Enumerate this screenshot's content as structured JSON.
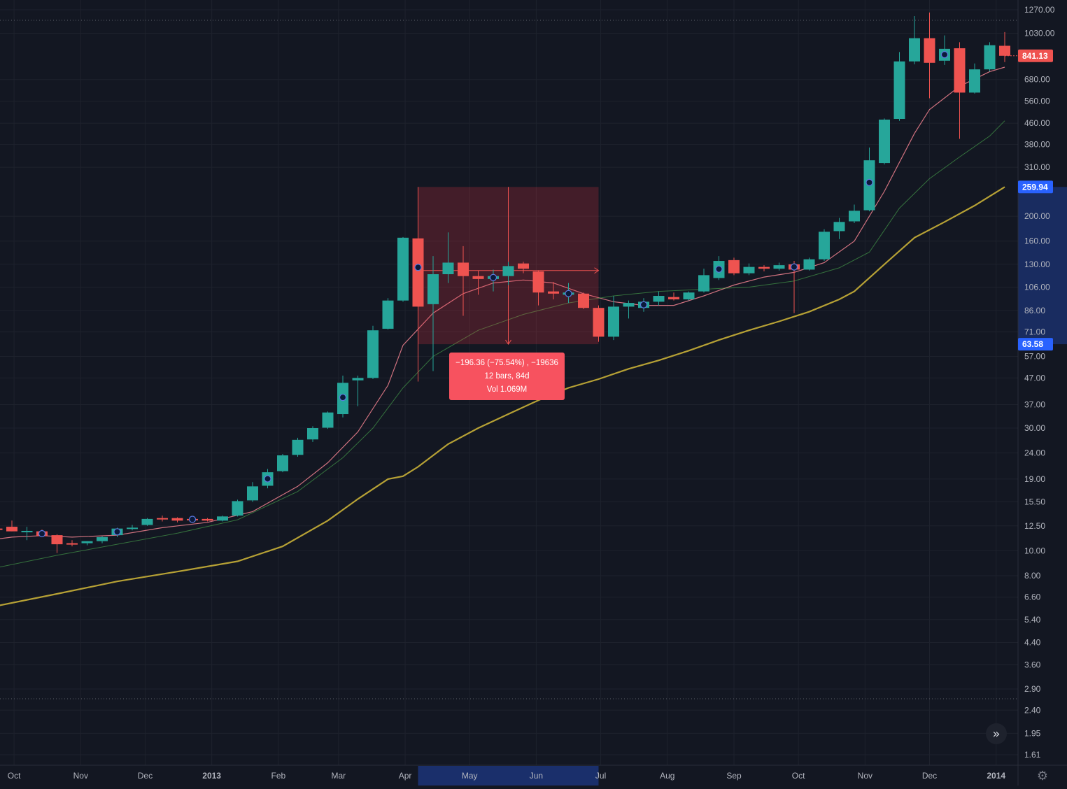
{
  "colors": {
    "background": "#131722",
    "grid": "#1e222d",
    "up": "#26a69a",
    "down": "#ef5350",
    "axis_text": "#b2b5be",
    "ema_fast": "#e57c8a",
    "ema_mid": "#4caf50",
    "sma_slow": "#c9b037",
    "measure_fill": "#f23645",
    "measure_label_bg": "#f7525f",
    "current_price_bg": "#ef5350",
    "range_label_bg": "#2962ff",
    "range_highlight": "#1e3a8a"
  },
  "chart_data": {
    "type": "candlestick",
    "interval": "weekly",
    "scale": "log",
    "ylim": [
      1.5,
      1300
    ],
    "grid": true,
    "y_ticks": [
      "1270.00",
      "1030.00",
      "841.13",
      "680.00",
      "560.00",
      "460.00",
      "380.00",
      "310.00",
      "259.94",
      "200.00",
      "160.00",
      "130.00",
      "106.00",
      "86.00",
      "71.00",
      "63.58",
      "57.00",
      "47.00",
      "37.00",
      "30.00",
      "24.00",
      "19.00",
      "15.50",
      "12.50",
      "10.00",
      "8.00",
      "6.60",
      "5.40",
      "4.40",
      "3.60",
      "2.90",
      "2.40",
      "1.95",
      "1.61"
    ],
    "x_labels": [
      "Oct",
      "Nov",
      "Dec",
      "2013",
      "Feb",
      "Mar",
      "Apr",
      "May",
      "Jun",
      "Jul",
      "Aug",
      "Sep",
      "Oct",
      "Nov",
      "Dec",
      "2014"
    ],
    "candles": [
      {
        "date": "2012-09-23",
        "o": 12.2,
        "h": 13.0,
        "l": 11.5,
        "c": 12.1
      },
      {
        "date": "2012-09-30",
        "o": 12.4,
        "h": 13.1,
        "l": 11.9,
        "c": 11.9
      },
      {
        "date": "2012-10-07",
        "o": 11.9,
        "h": 12.4,
        "l": 11.0,
        "c": 11.95
      },
      {
        "date": "2012-10-14",
        "o": 11.9,
        "h": 12.1,
        "l": 11.4,
        "c": 11.4
      },
      {
        "date": "2012-10-21",
        "o": 11.5,
        "h": 11.6,
        "l": 9.8,
        "c": 10.6
      },
      {
        "date": "2012-10-28",
        "o": 10.7,
        "h": 11.0,
        "l": 10.4,
        "c": 10.65
      },
      {
        "date": "2012-11-04",
        "o": 10.7,
        "h": 10.9,
        "l": 10.5,
        "c": 10.9
      },
      {
        "date": "2012-11-11",
        "o": 10.9,
        "h": 11.4,
        "l": 10.7,
        "c": 11.3
      },
      {
        "date": "2012-11-18",
        "o": 11.5,
        "h": 12.3,
        "l": 11.3,
        "c": 12.2
      },
      {
        "date": "2012-11-25",
        "o": 12.3,
        "h": 12.6,
        "l": 12.0,
        "c": 12.3
      },
      {
        "date": "2012-12-02",
        "o": 12.6,
        "h": 13.4,
        "l": 12.5,
        "c": 13.3
      },
      {
        "date": "2012-12-09",
        "o": 13.4,
        "h": 13.7,
        "l": 13.0,
        "c": 13.3
      },
      {
        "date": "2012-12-16",
        "o": 13.4,
        "h": 13.5,
        "l": 12.9,
        "c": 13.1
      },
      {
        "date": "2012-12-23",
        "o": 13.3,
        "h": 13.4,
        "l": 13.0,
        "c": 13.2
      },
      {
        "date": "2012-12-30",
        "o": 13.3,
        "h": 13.4,
        "l": 13.0,
        "c": 13.1
      },
      {
        "date": "2013-01-06",
        "o": 13.1,
        "h": 13.7,
        "l": 13.0,
        "c": 13.6
      },
      {
        "date": "2013-01-13",
        "o": 13.7,
        "h": 15.8,
        "l": 13.6,
        "c": 15.6
      },
      {
        "date": "2013-01-20",
        "o": 15.7,
        "h": 18.5,
        "l": 15.5,
        "c": 17.8
      },
      {
        "date": "2013-01-27",
        "o": 17.9,
        "h": 20.8,
        "l": 17.5,
        "c": 20.2
      },
      {
        "date": "2013-02-03",
        "o": 20.4,
        "h": 23.8,
        "l": 20.2,
        "c": 23.5
      },
      {
        "date": "2013-02-10",
        "o": 23.6,
        "h": 27.5,
        "l": 23.2,
        "c": 27.0
      },
      {
        "date": "2013-02-17",
        "o": 27.1,
        "h": 30.5,
        "l": 26.5,
        "c": 30.0
      },
      {
        "date": "2013-02-24",
        "o": 30.1,
        "h": 34.8,
        "l": 29.8,
        "c": 34.5
      },
      {
        "date": "2013-03-03",
        "o": 34.0,
        "h": 48.0,
        "l": 33.0,
        "c": 45.0
      },
      {
        "date": "2013-03-10",
        "o": 46.0,
        "h": 48.0,
        "l": 36.5,
        "c": 47.0
      },
      {
        "date": "2013-03-17",
        "o": 47.0,
        "h": 75.0,
        "l": 46.5,
        "c": 72.0
      },
      {
        "date": "2013-03-24",
        "o": 73.0,
        "h": 96.0,
        "l": 72.5,
        "c": 94.0
      },
      {
        "date": "2013-03-31",
        "o": 94.0,
        "h": 166.0,
        "l": 93.0,
        "c": 165.0
      },
      {
        "date": "2013-04-07",
        "o": 164.0,
        "h": 166.0,
        "l": 45.5,
        "c": 89.0
      },
      {
        "date": "2013-04-14",
        "o": 91.0,
        "h": 140.0,
        "l": 50.0,
        "c": 119.0
      },
      {
        "date": "2013-04-21",
        "o": 119.0,
        "h": 173.0,
        "l": 110.0,
        "c": 132.0
      },
      {
        "date": "2013-04-28",
        "o": 132.0,
        "h": 153.0,
        "l": 82.0,
        "c": 117.0
      },
      {
        "date": "2013-05-05",
        "o": 117.0,
        "h": 123.0,
        "l": 99.0,
        "c": 114.0
      },
      {
        "date": "2013-05-12",
        "o": 114.0,
        "h": 124.0,
        "l": 102.0,
        "c": 117.0
      },
      {
        "date": "2013-05-19",
        "o": 117.0,
        "h": 133.0,
        "l": 108.0,
        "c": 128.0
      },
      {
        "date": "2013-05-26",
        "o": 131.0,
        "h": 133.0,
        "l": 120.0,
        "c": 125.0
      },
      {
        "date": "2013-06-02",
        "o": 122.0,
        "h": 123.0,
        "l": 90.0,
        "c": 101.0
      },
      {
        "date": "2013-06-09",
        "o": 102.0,
        "h": 111.0,
        "l": 95.0,
        "c": 100.0
      },
      {
        "date": "2013-06-16",
        "o": 99.0,
        "h": 110.0,
        "l": 92.0,
        "c": 101.0
      },
      {
        "date": "2013-06-23",
        "o": 100.0,
        "h": 101.0,
        "l": 87.0,
        "c": 88.0
      },
      {
        "date": "2013-06-30",
        "o": 88.0,
        "h": 90.0,
        "l": 65.0,
        "c": 68.0
      },
      {
        "date": "2013-07-07",
        "o": 68.0,
        "h": 98.0,
        "l": 66.0,
        "c": 89.0
      },
      {
        "date": "2013-07-14",
        "o": 89.0,
        "h": 94.0,
        "l": 80.0,
        "c": 92.0
      },
      {
        "date": "2013-07-21",
        "o": 88.0,
        "h": 96.0,
        "l": 85.0,
        "c": 93.0
      },
      {
        "date": "2013-07-28",
        "o": 93.0,
        "h": 102.0,
        "l": 90.0,
        "c": 98.0
      },
      {
        "date": "2013-08-04",
        "o": 97.0,
        "h": 101.0,
        "l": 94.0,
        "c": 95.0
      },
      {
        "date": "2013-08-11",
        "o": 95.0,
        "h": 102.0,
        "l": 94.0,
        "c": 101.0
      },
      {
        "date": "2013-08-18",
        "o": 102.0,
        "h": 125.0,
        "l": 101.0,
        "c": 118.0
      },
      {
        "date": "2013-08-25",
        "o": 115.0,
        "h": 140.0,
        "l": 113.0,
        "c": 134.0
      },
      {
        "date": "2013-09-01",
        "o": 135.0,
        "h": 138.0,
        "l": 118.0,
        "c": 120.0
      },
      {
        "date": "2013-09-08",
        "o": 120.0,
        "h": 131.0,
        "l": 118.0,
        "c": 127.0
      },
      {
        "date": "2013-09-15",
        "o": 127.0,
        "h": 129.0,
        "l": 122.0,
        "c": 125.0
      },
      {
        "date": "2013-09-22",
        "o": 125.0,
        "h": 132.0,
        "l": 123.0,
        "c": 129.0
      },
      {
        "date": "2013-09-29",
        "o": 130.0,
        "h": 134.0,
        "l": 84.0,
        "c": 124.0
      },
      {
        "date": "2013-10-06",
        "o": 124.0,
        "h": 138.0,
        "l": 123.0,
        "c": 136.0
      },
      {
        "date": "2013-10-13",
        "o": 136.0,
        "h": 178.0,
        "l": 134.0,
        "c": 174.0
      },
      {
        "date": "2013-10-20",
        "o": 175.0,
        "h": 197.0,
        "l": 163.0,
        "c": 190.0
      },
      {
        "date": "2013-10-27",
        "o": 191.0,
        "h": 222.0,
        "l": 188.0,
        "c": 210.0
      },
      {
        "date": "2013-11-03",
        "o": 211.0,
        "h": 370.0,
        "l": 209.0,
        "c": 330.0
      },
      {
        "date": "2013-11-10",
        "o": 322.0,
        "h": 480.0,
        "l": 318.0,
        "c": 475.0
      },
      {
        "date": "2013-11-17",
        "o": 478.0,
        "h": 870.0,
        "l": 470.0,
        "c": 800.0
      },
      {
        "date": "2013-11-24",
        "o": 800.0,
        "h": 1200.0,
        "l": 780.0,
        "c": 985.0
      },
      {
        "date": "2013-12-01",
        "o": 985.0,
        "h": 1240.0,
        "l": 575.0,
        "c": 790.0
      },
      {
        "date": "2013-12-08",
        "o": 805.0,
        "h": 1010.0,
        "l": 775.0,
        "c": 895.0
      },
      {
        "date": "2013-12-15",
        "o": 900.0,
        "h": 950.0,
        "l": 400.0,
        "c": 605.0
      },
      {
        "date": "2013-12-22",
        "o": 605.0,
        "h": 785.0,
        "l": 600.0,
        "c": 745.0
      },
      {
        "date": "2013-12-29",
        "o": 745.0,
        "h": 950.0,
        "l": 732.0,
        "c": 925.0
      },
      {
        "date": "2014-01-05",
        "o": 920.0,
        "h": 1040.0,
        "l": 795.0,
        "c": 841.13
      }
    ],
    "marker_weeks": [
      "2012-10-14",
      "2012-11-18",
      "2012-12-23",
      "2013-03-03",
      "2013-01-27",
      "2013-04-07",
      "2013-05-12",
      "2013-06-16",
      "2013-07-21",
      "2013-08-25",
      "2013-09-29",
      "2013-11-03",
      "2013-12-08"
    ],
    "indicators": [
      {
        "type": "EMA",
        "points": [
          [
            0,
            11.1
          ],
          [
            1,
            11.3
          ],
          [
            3,
            11.45
          ],
          [
            5,
            11.3
          ],
          [
            8,
            11.5
          ],
          [
            11,
            12.3
          ],
          [
            14,
            12.9
          ],
          [
            17,
            14.2
          ],
          [
            20,
            17.8
          ],
          [
            22,
            22.0
          ],
          [
            24,
            29.0
          ],
          [
            26,
            44.0
          ],
          [
            27,
            63.0
          ],
          [
            29,
            84.0
          ],
          [
            31,
            100.0
          ],
          [
            33,
            110.0
          ],
          [
            35,
            113.0
          ],
          [
            37,
            110.0
          ],
          [
            39,
            100.0
          ],
          [
            41,
            93.0
          ],
          [
            43,
            90.0
          ],
          [
            45,
            90.0
          ],
          [
            47,
            98.0
          ],
          [
            49,
            108.0
          ],
          [
            51,
            116.0
          ],
          [
            53,
            121.0
          ],
          [
            55,
            132.0
          ],
          [
            57,
            160.0
          ],
          [
            59,
            250.0
          ],
          [
            61,
            420.0
          ],
          [
            62,
            520.0
          ],
          [
            64,
            640.0
          ],
          [
            66,
            730.0
          ],
          [
            67,
            760.0
          ]
        ]
      },
      {
        "type": "EMA",
        "points": [
          [
            0,
            8.6
          ],
          [
            4,
            9.6
          ],
          [
            8,
            10.6
          ],
          [
            12,
            11.7
          ],
          [
            16,
            13.2
          ],
          [
            20,
            17.0
          ],
          [
            23,
            23.0
          ],
          [
            25,
            30.0
          ],
          [
            27,
            43.0
          ],
          [
            29,
            57.0
          ],
          [
            32,
            72.0
          ],
          [
            35,
            83.0
          ],
          [
            38,
            92.0
          ],
          [
            41,
            98.0
          ],
          [
            44,
            102.0
          ],
          [
            47,
            104.0
          ],
          [
            50,
            106.0
          ],
          [
            53,
            112.0
          ],
          [
            56,
            126.0
          ],
          [
            58,
            145.0
          ],
          [
            60,
            215.0
          ],
          [
            62,
            280.0
          ],
          [
            64,
            340.0
          ],
          [
            66,
            410.0
          ],
          [
            67,
            470.0
          ]
        ]
      },
      {
        "type": "SMA",
        "points": [
          [
            0,
            6.1
          ],
          [
            4,
            6.8
          ],
          [
            8,
            7.6
          ],
          [
            12,
            8.3
          ],
          [
            16,
            9.1
          ],
          [
            19,
            10.4
          ],
          [
            22,
            13.1
          ],
          [
            24,
            15.9
          ],
          [
            26,
            19.0
          ],
          [
            27,
            19.5
          ],
          [
            28,
            21.2
          ],
          [
            30,
            26.0
          ],
          [
            32,
            30.0
          ],
          [
            34,
            34.0
          ],
          [
            36,
            38.5
          ],
          [
            38,
            43.0
          ],
          [
            40,
            46.5
          ],
          [
            42,
            51.0
          ],
          [
            44,
            55.0
          ],
          [
            46,
            60.0
          ],
          [
            48,
            66.0
          ],
          [
            50,
            72.0
          ],
          [
            52,
            78.0
          ],
          [
            54,
            85.0
          ],
          [
            56,
            95.0
          ],
          [
            57,
            102.0
          ],
          [
            59,
            130.0
          ],
          [
            61,
            165.0
          ],
          [
            63,
            190.0
          ],
          [
            65,
            220.0
          ],
          [
            67,
            259.94
          ]
        ]
      }
    ],
    "measure": {
      "start_date": "2013-04-07",
      "end_date": "2013-06-30",
      "price_top": 259.94,
      "price_bottom": 63.58,
      "arrow_level": 123.0,
      "label_line1": "−196.36 (−75.54%) , −19636",
      "label_line2": "12 bars, 84d",
      "label_line3": "Vol 1.069M"
    },
    "price_labels": {
      "current": "841.13",
      "range_high": "259.94",
      "range_low": "63.58"
    },
    "range_highlight": {
      "start_date": "2013-04-07",
      "end_date": "2013-06-30"
    }
  },
  "controls": {
    "scroll_to_end": "»",
    "settings": "⚙"
  }
}
